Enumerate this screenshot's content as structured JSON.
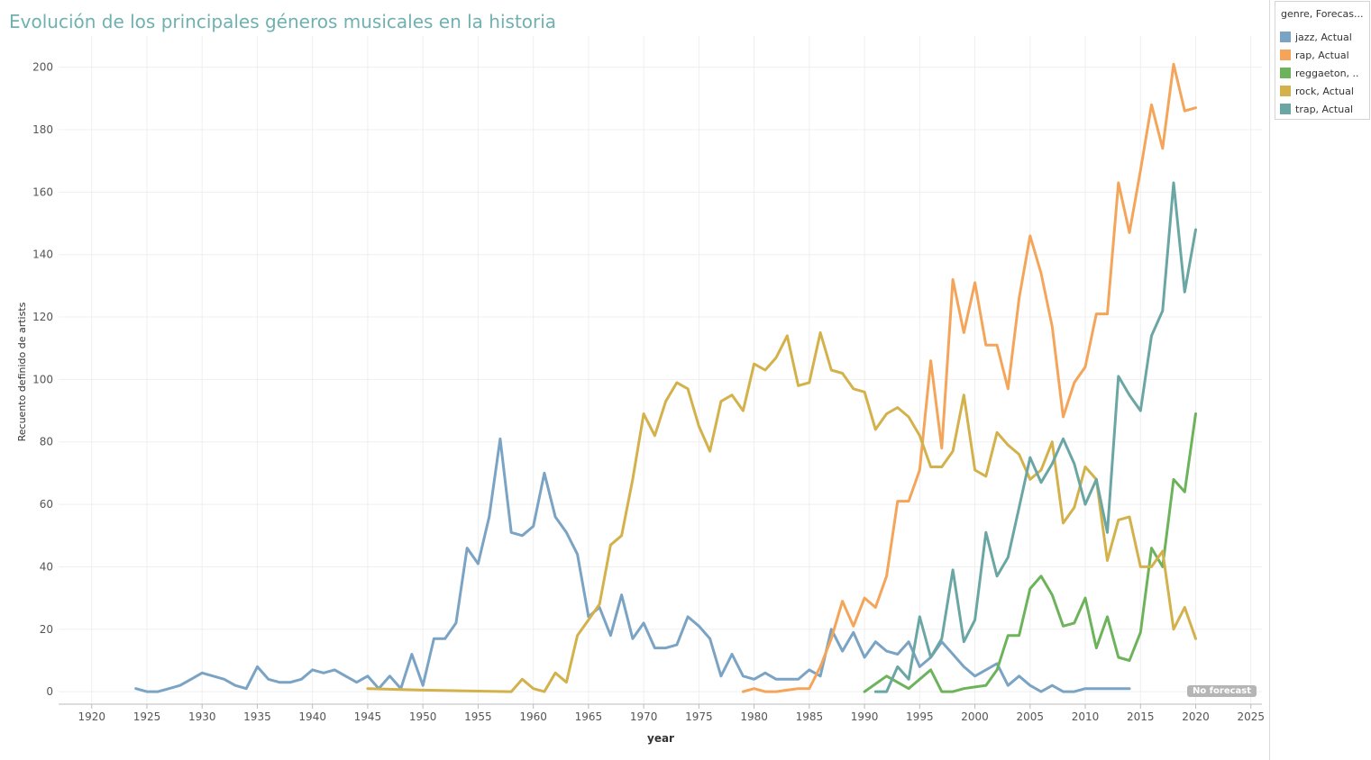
{
  "title": "Evolución de los principales géneros musicales en la historia",
  "legend": {
    "title": "genre, Forecas...",
    "items": [
      {
        "label": "jazz, Actual",
        "color": "#7aa3c4"
      },
      {
        "label": "rap, Actual",
        "color": "#f4a55a"
      },
      {
        "label": "reggaeton, ..",
        "color": "#6db35c"
      },
      {
        "label": "rock, Actual",
        "color": "#d3b14b"
      },
      {
        "label": "trap, Actual",
        "color": "#6aa6a3"
      }
    ]
  },
  "badge": "No forecast",
  "chart_data": {
    "type": "line",
    "xlabel": "year",
    "ylabel": "Recuento definido de artists",
    "xlim": [
      1917,
      2026
    ],
    "ylim": [
      -4,
      210
    ],
    "xticks": [
      1920,
      1925,
      1930,
      1935,
      1940,
      1945,
      1950,
      1955,
      1960,
      1965,
      1970,
      1975,
      1980,
      1985,
      1990,
      1995,
      2000,
      2005,
      2010,
      2015,
      2020,
      2025
    ],
    "yticks": [
      0,
      20,
      40,
      60,
      80,
      100,
      120,
      140,
      160,
      180,
      200
    ],
    "grid": true,
    "series": [
      {
        "name": "jazz, Actual",
        "color": "#7aa3c4",
        "x": [
          1924,
          1925,
          1926,
          1927,
          1928,
          1929,
          1930,
          1931,
          1932,
          1933,
          1934,
          1935,
          1936,
          1937,
          1938,
          1939,
          1940,
          1941,
          1942,
          1943,
          1944,
          1945,
          1946,
          1947,
          1948,
          1949,
          1950,
          1951,
          1952,
          1953,
          1954,
          1955,
          1956,
          1957,
          1958,
          1959,
          1960,
          1961,
          1962,
          1963,
          1964,
          1965,
          1966,
          1967,
          1968,
          1969,
          1970,
          1971,
          1972,
          1973,
          1974,
          1975,
          1976,
          1977,
          1978,
          1979,
          1980,
          1981,
          1982,
          1983,
          1984,
          1985,
          1986,
          1987,
          1988,
          1989,
          1990,
          1991,
          1992,
          1993,
          1994,
          1995,
          1996,
          1997,
          1998,
          1999,
          2000,
          2001,
          2002,
          2003,
          2004,
          2005,
          2006,
          2007,
          2008,
          2009,
          2010,
          2011,
          2012,
          2013,
          2014
        ],
        "y": [
          1,
          0,
          0,
          1,
          2,
          4,
          6,
          5,
          4,
          2,
          1,
          8,
          4,
          3,
          3,
          4,
          7,
          6,
          7,
          5,
          3,
          5,
          1,
          5,
          1,
          12,
          2,
          17,
          17,
          22,
          46,
          41,
          56,
          81,
          51,
          50,
          53,
          70,
          56,
          51,
          44,
          24,
          27,
          18,
          31,
          17,
          22,
          14,
          14,
          15,
          24,
          21,
          17,
          5,
          12,
          5,
          4,
          6,
          4,
          4,
          4,
          7,
          5,
          20,
          13,
          19,
          11,
          16,
          13,
          12,
          16,
          8,
          11,
          16,
          12,
          8,
          5,
          7,
          9,
          2,
          5,
          2,
          0,
          2,
          0,
          0,
          1,
          1,
          1,
          1,
          1
        ]
      },
      {
        "name": "rap, Actual",
        "color": "#f4a55a",
        "x": [
          1979,
          1980,
          1981,
          1982,
          1983,
          1984,
          1985,
          1986,
          1987,
          1988,
          1989,
          1990,
          1991,
          1992,
          1993,
          1994,
          1995,
          1996,
          1997,
          1998,
          1999,
          2000,
          2001,
          2002,
          2003,
          2004,
          2005,
          2006,
          2007,
          2008,
          2009,
          2010,
          2011,
          2012,
          2013,
          2014,
          2015,
          2016,
          2017,
          2018,
          2019,
          2020
        ],
        "y": [
          0,
          1,
          0,
          0,
          0.5,
          1,
          1,
          8,
          17,
          29,
          21,
          30,
          27,
          37,
          61,
          61,
          71,
          106,
          78,
          132,
          115,
          131,
          111,
          111,
          97,
          126,
          146,
          134,
          117,
          88,
          99,
          104,
          121,
          121,
          163,
          147,
          167,
          188,
          174,
          201,
          186,
          187
        ]
      },
      {
        "name": "reggaeton, ..",
        "color": "#6db35c",
        "x": [
          1990,
          1991,
          1992,
          1993,
          1994,
          1995,
          1996,
          1997,
          1998,
          1999,
          2000,
          2001,
          2002,
          2003,
          2004,
          2005,
          2006,
          2007,
          2008,
          2009,
          2010,
          2011,
          2012,
          2013,
          2014,
          2015,
          2016,
          2017,
          2018,
          2019,
          2020
        ],
        "y": [
          0,
          2.5,
          5,
          3,
          1,
          4,
          7,
          0,
          0,
          1,
          1.5,
          2,
          7,
          18,
          18,
          33,
          37,
          31,
          21,
          22,
          30,
          14,
          24,
          11,
          10,
          19,
          46,
          40,
          68,
          64,
          89
        ]
      },
      {
        "name": "rock, Actual",
        "color": "#d3b14b",
        "x": [
          1945,
          1950,
          1958,
          1959,
          1960,
          1961,
          1962,
          1963,
          1964,
          1965,
          1966,
          1967,
          1968,
          1969,
          1970,
          1971,
          1972,
          1973,
          1974,
          1975,
          1976,
          1977,
          1978,
          1979,
          1980,
          1981,
          1982,
          1983,
          1984,
          1985,
          1986,
          1987,
          1988,
          1989,
          1990,
          1991,
          1992,
          1993,
          1994,
          1995,
          1996,
          1997,
          1998,
          1999,
          2000,
          2001,
          2002,
          2003,
          2004,
          2005,
          2006,
          2007,
          2008,
          2009,
          2010,
          2011,
          2012,
          2013,
          2014,
          2015,
          2016,
          2017,
          2018,
          2019,
          2020
        ],
        "y": [
          1,
          0.5,
          0,
          4,
          1,
          0,
          6,
          3,
          18,
          23,
          28,
          47,
          50,
          68,
          89,
          82,
          93,
          99,
          97,
          85,
          77,
          93,
          95,
          90,
          105,
          103,
          107,
          114,
          98,
          99,
          115,
          103,
          102,
          97,
          96,
          84,
          89,
          91,
          88,
          82,
          72,
          72,
          77,
          95,
          71,
          69,
          83,
          79,
          76,
          68,
          71,
          80,
          54,
          59,
          72,
          68,
          42,
          55,
          56,
          40,
          40,
          45,
          20,
          27,
          17
        ]
      },
      {
        "name": "trap, Actual",
        "color": "#6aa6a3",
        "x": [
          1991,
          1992,
          1993,
          1994,
          1995,
          1996,
          1997,
          1998,
          1999,
          2000,
          2001,
          2002,
          2003,
          2004,
          2005,
          2006,
          2007,
          2008,
          2009,
          2010,
          2011,
          2012,
          2013,
          2014,
          2015,
          2016,
          2017,
          2018,
          2019,
          2020
        ],
        "y": [
          0,
          0,
          8,
          4,
          24,
          11,
          17,
          39,
          16,
          23,
          51,
          37,
          43,
          59,
          75,
          67,
          73,
          81,
          73,
          60,
          68,
          51,
          101,
          95,
          90,
          114,
          122,
          163,
          128,
          148
        ]
      }
    ]
  }
}
